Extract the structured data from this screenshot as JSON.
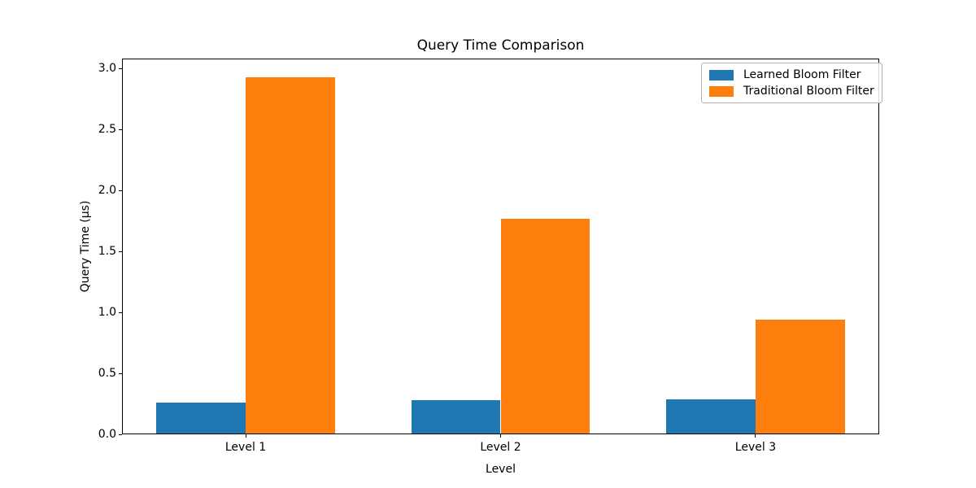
{
  "chart_data": {
    "type": "bar",
    "title": "Query Time Comparison",
    "xlabel": "Level",
    "ylabel": "Query Time (μs)",
    "categories": [
      "Level 1",
      "Level 2",
      "Level 3"
    ],
    "series": [
      {
        "name": "Learned Bloom Filter",
        "color": "#1f77b4",
        "values": [
          0.26,
          0.28,
          0.29
        ]
      },
      {
        "name": "Traditional Bloom Filter",
        "color": "#ff7f0e",
        "values": [
          2.93,
          1.77,
          0.94
        ]
      }
    ],
    "bar_width": 0.35,
    "ylim": [
      0,
      3.08
    ],
    "yticks": [
      0.0,
      0.5,
      1.0,
      1.5,
      2.0,
      2.5,
      3.0
    ],
    "grid": false,
    "legend": {
      "position": "upper right"
    },
    "colors": {
      "axes": "#000000",
      "background": "#ffffff"
    }
  }
}
